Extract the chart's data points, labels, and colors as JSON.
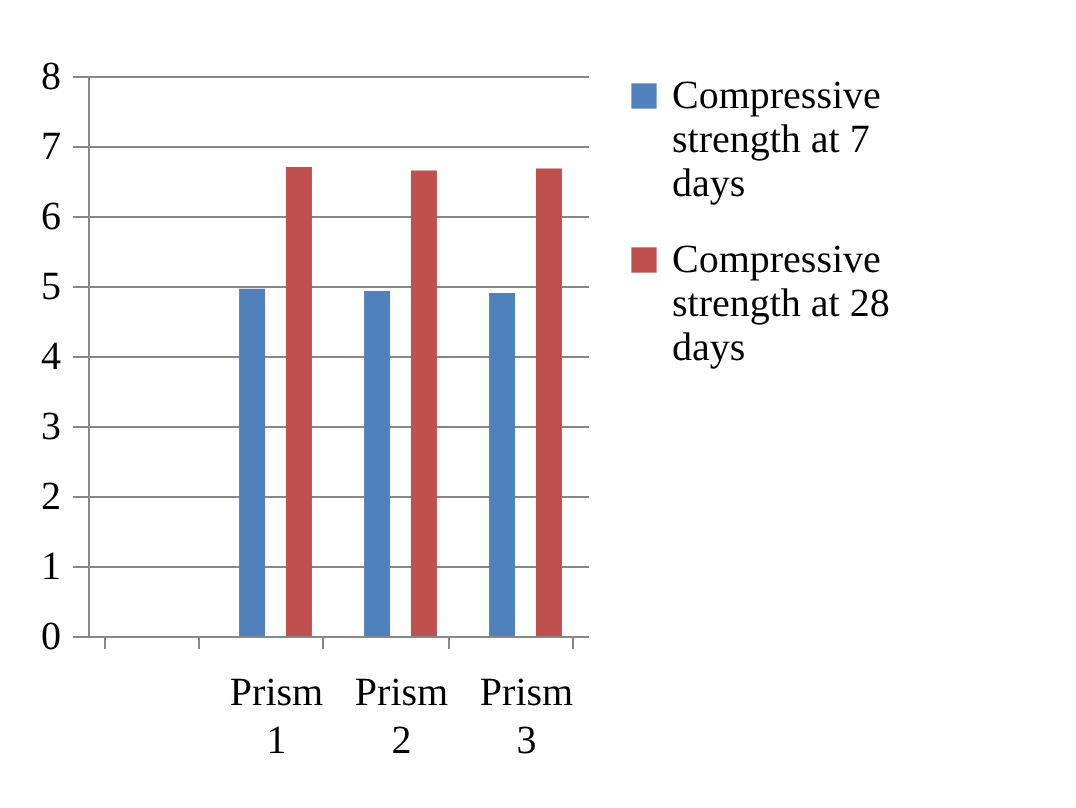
{
  "chart_data": {
    "type": "bar",
    "categories": [
      null,
      "Prism 1",
      "Prism 2",
      "Prism 3"
    ],
    "series": [
      {
        "name": "Compressive strength at 7 days",
        "color": "#4f81bd",
        "values": [
          null,
          4.96,
          4.93,
          4.9
        ]
      },
      {
        "name": "Compressive strength at 28 days",
        "color": "#c0504d",
        "values": [
          null,
          6.7,
          6.65,
          6.68
        ]
      }
    ],
    "ylim": [
      0,
      8
    ],
    "yticks": [
      0,
      1,
      2,
      3,
      4,
      5,
      6,
      7,
      8
    ],
    "grid": "y",
    "legend": "right"
  }
}
